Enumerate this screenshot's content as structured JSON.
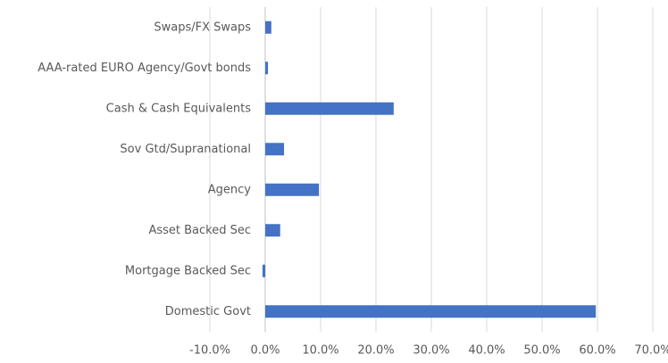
{
  "chart_data": {
    "type": "hbar",
    "categories": [
      "Swaps/FX Swaps",
      "AAA-rated EURO Agency/Govt bonds",
      "Cash & Cash Equivalents",
      "Sov Gtd/Supranational",
      "Agency",
      "Asset Backed Sec",
      "Mortgage Backed Sec",
      "Domestic Govt"
    ],
    "values": [
      1.1,
      0.5,
      23.2,
      3.4,
      9.7,
      2.7,
      -0.5,
      59.7
    ],
    "color": "#4472c4",
    "xlim": [
      -10,
      70
    ],
    "xticks": [
      {
        "value": -10,
        "label": "-10.0%"
      },
      {
        "value": 0,
        "label": "0.0%"
      },
      {
        "value": 10,
        "label": "10.0%"
      },
      {
        "value": 20,
        "label": "20.0%"
      },
      {
        "value": 30,
        "label": "30.0%"
      },
      {
        "value": 40,
        "label": "40.0%"
      },
      {
        "value": 50,
        "label": "50.0%"
      },
      {
        "value": 60,
        "label": "60.0%"
      },
      {
        "value": 70,
        "label": "70.0%"
      }
    ],
    "grid": true
  }
}
